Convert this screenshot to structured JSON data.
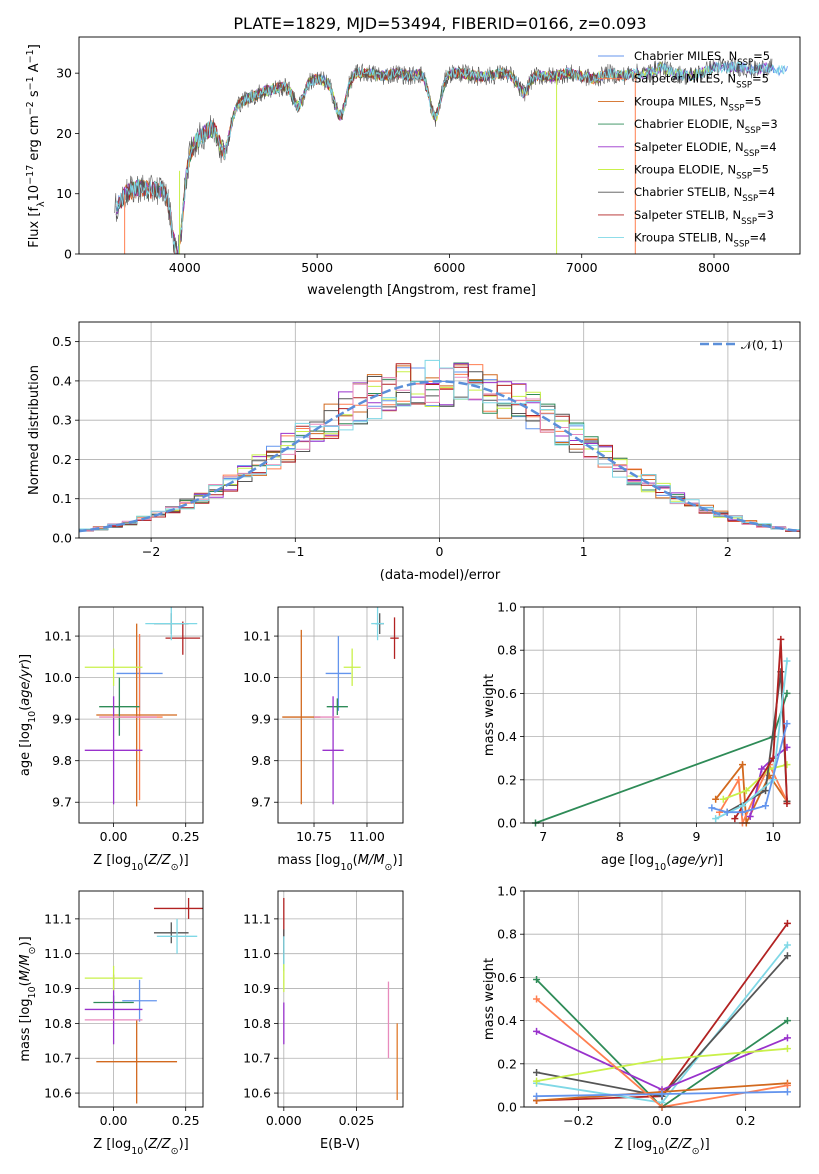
{
  "figure": {
    "title": "PLATE=1829, MJD=53494, FIBERID=0166, z=0.093"
  },
  "colors": {
    "s0": "#6495ed",
    "s1": "#ff7f50",
    "s2": "#d2691e",
    "s3": "#2e8b57",
    "s4": "#9932cc",
    "s5": "#c9f04a",
    "s6": "#555555",
    "s7": "#b22222",
    "s8": "#7fd8e6",
    "pink": "#e88bbd",
    "orange": "#e07a2c",
    "normal": "#5b8fd9"
  },
  "chart_data": [
    {
      "id": "spectrum",
      "type": "line",
      "title": "PLATE=1829, MJD=53494, FIBERID=0166, z=0.093",
      "xlabel": "wavelength [Angstrom, rest frame]",
      "ylabel_text": "Flux [f",
      "ylabel_sub": "λ",
      "ylabel_rest": "10",
      "ylabel_sup1": "−17",
      "ylabel_unit": " erg cm",
      "ylabel_sup2": "−2",
      "ylabel_unit2": " s",
      "ylabel_sup3": "−1",
      "ylabel_unit3": " A",
      "ylabel_sup4": "−1",
      "ylabel_end": "]",
      "xlim": [
        3200,
        8650
      ],
      "ylim": [
        0,
        36
      ],
      "xticks": [
        "4000",
        "5000",
        "6000",
        "7000",
        "8000"
      ],
      "xtick_values": [
        4000,
        5000,
        6000,
        7000,
        8000
      ],
      "yticks": [
        "0",
        "10",
        "20",
        "30"
      ],
      "ytick_values": [
        0,
        10,
        20,
        30
      ],
      "continuum": [
        [
          3480,
          7.5
        ],
        [
          3550,
          10
        ],
        [
          3650,
          11
        ],
        [
          3750,
          10.5
        ],
        [
          3850,
          11
        ],
        [
          3950,
          13
        ],
        [
          4000,
          17
        ],
        [
          4100,
          19
        ],
        [
          4200,
          21
        ],
        [
          4300,
          22
        ],
        [
          4400,
          25
        ],
        [
          4500,
          26
        ],
        [
          4600,
          27
        ],
        [
          4700,
          27.5
        ],
        [
          4800,
          28
        ],
        [
          4900,
          29
        ],
        [
          5000,
          29
        ],
        [
          5100,
          28.5
        ],
        [
          5200,
          29
        ],
        [
          5300,
          30
        ],
        [
          5400,
          30
        ],
        [
          5500,
          29.5
        ],
        [
          5600,
          30
        ],
        [
          5700,
          29.5
        ],
        [
          5800,
          30
        ],
        [
          5900,
          28.5
        ],
        [
          6000,
          30
        ],
        [
          6100,
          30
        ],
        [
          6200,
          29.5
        ],
        [
          6300,
          29.5
        ],
        [
          6400,
          30
        ],
        [
          6500,
          29.5
        ],
        [
          6600,
          30
        ],
        [
          6700,
          29.5
        ],
        [
          6800,
          29.5
        ],
        [
          6900,
          30
        ],
        [
          7000,
          29.5
        ],
        [
          7100,
          29
        ],
        [
          7200,
          30
        ],
        [
          7300,
          29.5
        ],
        [
          7400,
          30
        ],
        [
          7500,
          30
        ],
        [
          7600,
          31
        ],
        [
          7700,
          30
        ],
        [
          7800,
          29.5
        ],
        [
          7900,
          30
        ],
        [
          8000,
          31
        ],
        [
          8100,
          31
        ],
        [
          8200,
          31
        ],
        [
          8300,
          30.5
        ],
        [
          8400,
          31
        ],
        [
          8500,
          30.5
        ],
        [
          8550,
          31
        ]
      ],
      "absorption_lines": [
        [
          3933,
          8
        ],
        [
          3968,
          6
        ],
        [
          4300,
          5
        ],
        [
          4861,
          4
        ],
        [
          5175,
          6
        ],
        [
          5890,
          6
        ],
        [
          6563,
          3
        ]
      ],
      "spikes": [
        [
          6810,
          0
        ],
        [
          7405,
          0
        ],
        [
          3960,
          0
        ],
        [
          3540,
          0
        ]
      ],
      "legend": [
        {
          "pre": "Chabrier MILES, N",
          "sub": "SSP",
          "post": "=5"
        },
        {
          "pre": "Salpeter MILES, N",
          "sub": "SSP",
          "post": "=5"
        },
        {
          "pre": "Kroupa MILES, N",
          "sub": "SSP",
          "post": "=5"
        },
        {
          "pre": "Chabrier ELODIE, N",
          "sub": "SSP",
          "post": "=3"
        },
        {
          "pre": "Salpeter ELODIE, N",
          "sub": "SSP",
          "post": "=4"
        },
        {
          "pre": "Kroupa ELODIE, N",
          "sub": "SSP",
          "post": "=5"
        },
        {
          "pre": "Chabrier STELIB, N",
          "sub": "SSP",
          "post": "=4"
        },
        {
          "pre": "Salpeter STELIB, N",
          "sub": "SSP",
          "post": "=3"
        },
        {
          "pre": "Kroupa STELIB, N",
          "sub": "SSP",
          "post": "=4"
        }
      ]
    },
    {
      "id": "residuals",
      "type": "bar",
      "xlabel": "(data-model)/error",
      "ylabel": "Normed distribution",
      "xlim": [
        -2.5,
        2.5
      ],
      "ylim": [
        0,
        0.55
      ],
      "xticks": [
        "−2",
        "−1",
        "0",
        "1",
        "2"
      ],
      "xtick_values": [
        -2,
        -1,
        0,
        1,
        2
      ],
      "yticks": [
        "0.0",
        "0.1",
        "0.2",
        "0.3",
        "0.4",
        "0.5"
      ],
      "ytick_values": [
        0,
        0.1,
        0.2,
        0.3,
        0.4,
        0.5
      ],
      "bin_width": 0.1,
      "legend_label": "𝒩(0, 1)",
      "note": ""
    },
    {
      "id": "age_vs_Z",
      "type": "scatter",
      "xlabel": "Z [log",
      "xlabel_sub": "10",
      "xlabel_mid": "(Z/Z",
      "xlabel_sub2": "⊙",
      "xlabel_end": ")]",
      "ylabel": "age  [log",
      "ylabel_sub": "10",
      "ylabel_end": "(age/yr)]",
      "xlim": [
        -0.12,
        0.31
      ],
      "ylim": [
        9.65,
        10.17
      ],
      "xticks": [
        "0.00",
        "0.25"
      ],
      "xtick_values": [
        0.0,
        0.25
      ],
      "yticks": [
        "9.7",
        "9.8",
        "9.9",
        "10.0",
        "10.1"
      ],
      "ytick_values": [
        9.7,
        9.8,
        9.9,
        10.0,
        10.1
      ],
      "points": [
        {
          "c": "s0",
          "x": 0.09,
          "y": 10.01,
          "xe": 0.08,
          "ye": 0.09
        },
        {
          "c": "s1",
          "x": 0.09,
          "y": 9.905,
          "xe": 0.08,
          "ye": 0.2
        },
        {
          "c": "s2",
          "x": 0.08,
          "y": 9.91,
          "xe": 0.14,
          "ye": 0.22
        },
        {
          "c": "s3",
          "x": 0.02,
          "y": 9.93,
          "xe": 0.07,
          "ye": 0.07
        },
        {
          "c": "s4",
          "x": 0.0,
          "y": 9.825,
          "xe": 0.1,
          "ye": 0.13
        },
        {
          "c": "s5",
          "x": 0.0,
          "y": 10.025,
          "xe": 0.1,
          "ye": 0.045
        },
        {
          "c": "s6",
          "x": 0.2,
          "y": 10.13,
          "xe": 0.06,
          "ye": 0.025
        },
        {
          "c": "s7",
          "x": 0.24,
          "y": 10.095,
          "xe": 0.06,
          "ye": 0.04
        },
        {
          "c": "s8",
          "x": 0.2,
          "y": 10.13,
          "xe": 0.09,
          "ye": 0.04
        },
        {
          "c": "pink",
          "x": 0.05,
          "y": 9.905,
          "xe": 0.1,
          "ye": 0.0
        }
      ]
    },
    {
      "id": "age_vs_mass",
      "type": "scatter",
      "xlabel": "mass [log",
      "xlabel_sub": "10",
      "xlabel_mid": "(M/M",
      "xlabel_sub2": "⊙",
      "xlabel_end": ")]",
      "xlim": [
        10.58,
        11.17
      ],
      "ylim": [
        9.65,
        10.17
      ],
      "xticks": [
        "10.75",
        "11.00"
      ],
      "xtick_values": [
        10.75,
        11.0
      ],
      "yticks": [
        "9.7",
        "9.8",
        "9.9",
        "10.0",
        "10.1"
      ],
      "ytick_values": [
        9.7,
        9.8,
        9.9,
        10.0,
        10.1
      ],
      "points": [
        {
          "c": "s0",
          "x": 10.865,
          "y": 10.01,
          "xe": 0.06,
          "ye": 0.09
        },
        {
          "c": "s2",
          "x": 10.69,
          "y": 9.905,
          "xe": 0.09,
          "ye": 0.21
        },
        {
          "c": "s3",
          "x": 10.86,
          "y": 9.93,
          "xe": 0.05,
          "ye": 0.02
        },
        {
          "c": "s4",
          "x": 10.84,
          "y": 9.825,
          "xe": 0.05,
          "ye": 0.13
        },
        {
          "c": "s5",
          "x": 10.93,
          "y": 10.025,
          "xe": 0.04,
          "ye": 0.045
        },
        {
          "c": "s6",
          "x": 11.06,
          "y": 10.13,
          "xe": 0.02,
          "ye": 0.025
        },
        {
          "c": "s7",
          "x": 11.13,
          "y": 10.095,
          "xe": 0.02,
          "ye": 0.05
        },
        {
          "c": "s8",
          "x": 11.05,
          "y": 10.13,
          "xe": 0.03,
          "ye": 0.04
        },
        {
          "c": "pink",
          "x": 10.81,
          "y": 9.905,
          "xe": 0.06,
          "ye": 0.0
        }
      ]
    },
    {
      "id": "weight_vs_age",
      "type": "line",
      "xlabel": "age  [log",
      "xlabel_sub": "10",
      "xlabel_end": "(age/yr)]",
      "ylabel": "mass weight",
      "xlim": [
        6.75,
        10.35
      ],
      "ylim": [
        0,
        1.0
      ],
      "xticks": [
        "7",
        "8",
        "9",
        "10"
      ],
      "xtick_values": [
        7,
        8,
        9,
        10
      ],
      "yticks": [
        "0.0",
        "0.2",
        "0.4",
        "0.6",
        "0.8",
        "1.0"
      ],
      "ytick_values": [
        0,
        0.2,
        0.4,
        0.6,
        0.8,
        1.0
      ],
      "series": [
        {
          "c": "s3",
          "x": [
            6.9,
            10.0,
            10.18
          ],
          "y": [
            0.0,
            0.4,
            0.6
          ]
        },
        {
          "c": "s2",
          "x": [
            9.25,
            9.6,
            9.65,
            9.95,
            10.18
          ],
          "y": [
            0.11,
            0.27,
            0.0,
            0.22,
            0.1
          ]
        },
        {
          "c": "s1",
          "x": [
            9.3,
            9.55,
            9.6,
            9.95,
            10.18
          ],
          "y": [
            0.05,
            0.2,
            0.0,
            0.27,
            0.1
          ]
        },
        {
          "c": "s4",
          "x": [
            9.7,
            9.85,
            10.0,
            10.18
          ],
          "y": [
            0.03,
            0.25,
            0.3,
            0.35
          ]
        },
        {
          "c": "s5",
          "x": [
            9.35,
            9.65,
            9.95,
            10.18
          ],
          "y": [
            0.11,
            0.15,
            0.25,
            0.27
          ]
        },
        {
          "c": "s6",
          "x": [
            9.4,
            9.9,
            10.1,
            10.18
          ],
          "y": [
            0.05,
            0.15,
            0.7,
            0.1
          ]
        },
        {
          "c": "s7",
          "x": [
            9.5,
            10.0,
            10.1,
            10.18
          ],
          "y": [
            0.02,
            0.3,
            0.85,
            0.09
          ]
        },
        {
          "c": "s8",
          "x": [
            9.25,
            9.6,
            10.0,
            10.18
          ],
          "y": [
            0.02,
            0.08,
            0.2,
            0.75
          ]
        },
        {
          "c": "s0",
          "x": [
            9.2,
            9.4,
            9.6,
            9.9,
            10.18
          ],
          "y": [
            0.07,
            0.05,
            0.05,
            0.08,
            0.46
          ]
        }
      ]
    },
    {
      "id": "mass_vs_Z",
      "type": "scatter",
      "xlabel": "Z [log",
      "xlabel_sub": "10",
      "xlabel_mid": "(Z/Z",
      "xlabel_sub2": "⊙",
      "xlabel_end": ")]",
      "ylabel": "mass [log",
      "ylabel_sub": "10",
      "ylabel_mid": "(M/M",
      "ylabel_sub2": "⊙",
      "ylabel_end": ")]",
      "xlim": [
        -0.12,
        0.31
      ],
      "ylim": [
        10.56,
        11.18
      ],
      "xticks": [
        "0.00",
        "0.25"
      ],
      "xtick_values": [
        0.0,
        0.25
      ],
      "yticks": [
        "10.6",
        "10.7",
        "10.8",
        "10.9",
        "11.0",
        "11.1"
      ],
      "ytick_values": [
        10.6,
        10.7,
        10.8,
        10.9,
        11.0,
        11.1
      ],
      "points": [
        {
          "c": "s0",
          "x": 0.09,
          "y": 10.865,
          "xe": 0.06,
          "ye": 0.06
        },
        {
          "c": "s2",
          "x": 0.08,
          "y": 10.69,
          "xe": 0.14,
          "ye": 0.12
        },
        {
          "c": "s3",
          "x": 0.0,
          "y": 10.86,
          "xe": 0.07,
          "ye": 0.02
        },
        {
          "c": "s4",
          "x": 0.0,
          "y": 10.84,
          "xe": 0.1,
          "ye": 0.1
        },
        {
          "c": "s5",
          "x": 0.0,
          "y": 10.93,
          "xe": 0.1,
          "ye": 0.035
        },
        {
          "c": "s6",
          "x": 0.2,
          "y": 11.06,
          "xe": 0.06,
          "ye": 0.03
        },
        {
          "c": "s7",
          "x": 0.26,
          "y": 11.13,
          "xe": 0.12,
          "ye": 0.03
        },
        {
          "c": "s8",
          "x": 0.22,
          "y": 11.05,
          "xe": 0.07,
          "ye": 0.05
        },
        {
          "c": "pink",
          "x": 0.0,
          "y": 10.81,
          "xe": 0.1,
          "ye": 0.0
        }
      ]
    },
    {
      "id": "mass_vs_ebv",
      "type": "scatter",
      "xlabel": "E(B-V)",
      "xlim": [
        -0.002,
        0.041
      ],
      "ylim": [
        10.56,
        11.18
      ],
      "xticks": [
        "0.000",
        "0.025"
      ],
      "xtick_values": [
        0.0,
        0.025
      ],
      "yticks": [
        "10.6",
        "10.7",
        "10.8",
        "10.9",
        "11.0",
        "11.1"
      ],
      "ytick_values": [
        10.6,
        10.7,
        10.8,
        10.9,
        11.0,
        11.1
      ],
      "points": [
        {
          "c": "s7",
          "x": 0.0,
          "y": 11.08,
          "xe": 0,
          "ye": 0.08
        },
        {
          "c": "s6",
          "x": 0.0,
          "y": 11.02,
          "xe": 0,
          "ye": 0.05
        },
        {
          "c": "s8",
          "x": 0.0,
          "y": 11.0,
          "xe": 0,
          "ye": 0.05
        },
        {
          "c": "s5",
          "x": 0.0,
          "y": 10.93,
          "xe": 0,
          "ye": 0.04
        },
        {
          "c": "s4",
          "x": 0.0,
          "y": 10.8,
          "xe": 0,
          "ye": 0.06
        },
        {
          "c": "pink",
          "x": 0.036,
          "y": 10.81,
          "xe": 0,
          "ye": 0.11
        },
        {
          "c": "orange",
          "x": 0.039,
          "y": 10.69,
          "xe": 0,
          "ye": 0.11
        }
      ]
    },
    {
      "id": "weight_vs_Z",
      "type": "line",
      "xlabel": "Z [log",
      "xlabel_sub": "10",
      "xlabel_mid": "(Z/Z",
      "xlabel_sub2": "⊙",
      "xlabel_end": ")]",
      "ylabel": "mass weight",
      "xlim": [
        -0.33,
        0.33
      ],
      "ylim": [
        0,
        1.0
      ],
      "xticks": [
        "−0.2",
        "0.0",
        "0.2"
      ],
      "xtick_values": [
        -0.2,
        0.0,
        0.2
      ],
      "yticks": [
        "0.0",
        "0.2",
        "0.4",
        "0.6",
        "0.8",
        "1.0"
      ],
      "ytick_values": [
        0,
        0.2,
        0.4,
        0.6,
        0.8,
        1.0
      ],
      "series": [
        {
          "c": "s3",
          "x": [
            -0.3,
            0.0,
            0.3
          ],
          "y": [
            0.59,
            0.0,
            0.4
          ]
        },
        {
          "c": "s7",
          "x": [
            -0.3,
            0.0,
            0.3
          ],
          "y": [
            0.03,
            0.05,
            0.85
          ]
        },
        {
          "c": "s8",
          "x": [
            -0.3,
            0.0,
            0.3
          ],
          "y": [
            0.11,
            0.02,
            0.75
          ]
        },
        {
          "c": "s6",
          "x": [
            -0.3,
            0.0,
            0.3
          ],
          "y": [
            0.16,
            0.05,
            0.7
          ]
        },
        {
          "c": "s4",
          "x": [
            -0.3,
            0.0,
            0.3
          ],
          "y": [
            0.35,
            0.08,
            0.32
          ]
        },
        {
          "c": "s5",
          "x": [
            -0.3,
            0.0,
            0.3
          ],
          "y": [
            0.12,
            0.22,
            0.27
          ]
        },
        {
          "c": "s2",
          "x": [
            -0.3,
            0.0,
            0.3
          ],
          "y": [
            0.03,
            0.07,
            0.11
          ]
        },
        {
          "c": "s1",
          "x": [
            -0.3,
            0.0,
            0.3
          ],
          "y": [
            0.5,
            0.0,
            0.1
          ]
        },
        {
          "c": "s0",
          "x": [
            -0.3,
            0.0,
            0.3
          ],
          "y": [
            0.05,
            0.06,
            0.07
          ]
        }
      ]
    }
  ]
}
